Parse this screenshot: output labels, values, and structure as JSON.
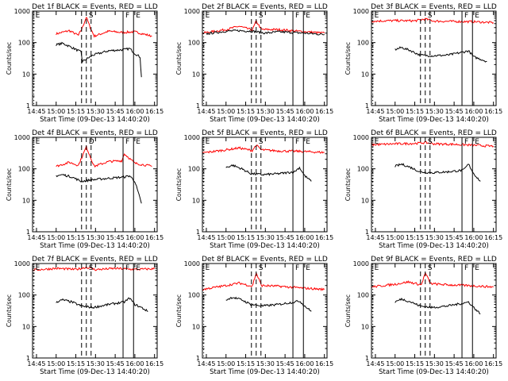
{
  "chart_data": [
    {
      "type": "line",
      "title": "Det 1f BLACK = Events, RED = LLD",
      "xlabel": "Start Time (09-Dec-13 14:40:20)",
      "ylabel": "Counts/sec",
      "yscale": "log",
      "ylim": [
        1,
        1000
      ],
      "xlim": [
        "14:42",
        "16:17"
      ],
      "xticks": [
        "14:45",
        "15:00",
        "15:15",
        "15:30",
        "15:45",
        "16:00",
        "16:15"
      ],
      "yticks": [
        "1",
        "10",
        "100",
        "1000"
      ],
      "markers": [
        {
          "label": "E",
          "time": "14:43"
        },
        {
          "label": "S",
          "time": "15:23"
        },
        {
          "label": "F",
          "time": "15:51"
        },
        {
          "label": "E",
          "time": "15:59"
        }
      ],
      "series": [
        {
          "color": "#ff0000",
          "x": [
            "15:00",
            "15:10",
            "15:17",
            "15:20",
            "15:23",
            "15:26",
            "15:29",
            "15:40",
            "15:50",
            "16:00",
            "16:13"
          ],
          "y": [
            190,
            240,
            170,
            300,
            650,
            300,
            160,
            230,
            210,
            220,
            160
          ]
        },
        {
          "color": "#000000",
          "x": [
            "15:00",
            "15:05",
            "15:12",
            "15:19",
            "15:20",
            "15:28",
            "15:40",
            "15:52",
            "15:56",
            "16:00",
            "16:04",
            "16:05"
          ],
          "y": [
            85,
            95,
            70,
            50,
            25,
            40,
            55,
            60,
            65,
            45,
            35,
            8
          ]
        }
      ]
    },
    {
      "type": "line",
      "title": "Det 2f BLACK = Events, RED = LLD",
      "xlabel": "Start Time (09-Dec-13 14:40:20)",
      "ylabel": "Counts/sec",
      "yscale": "log",
      "ylim": [
        1,
        1000
      ],
      "xlim": [
        "14:42",
        "16:17"
      ],
      "xticks": [
        "14:45",
        "15:00",
        "15:15",
        "15:30",
        "15:45",
        "16:00",
        "16:15"
      ],
      "yticks": [
        "1",
        "10",
        "100",
        "1000"
      ],
      "markers": [
        {
          "label": "E",
          "time": "14:43"
        },
        {
          "label": "S",
          "time": "15:23"
        },
        {
          "label": "F",
          "time": "15:51"
        },
        {
          "label": "E",
          "time": "15:59"
        }
      ],
      "series": [
        {
          "color": "#ff0000",
          "x": [
            "14:42",
            "15:00",
            "15:10",
            "15:20",
            "15:23",
            "15:27",
            "15:40",
            "15:55",
            "16:15"
          ],
          "y": [
            200,
            260,
            330,
            250,
            480,
            260,
            260,
            230,
            200
          ]
        },
        {
          "color": "#000000",
          "x": [
            "14:45",
            "15:00",
            "15:10",
            "15:20",
            "15:30",
            "15:40",
            "15:50",
            "16:00",
            "16:15"
          ],
          "y": [
            190,
            230,
            240,
            230,
            200,
            220,
            210,
            200,
            180
          ]
        }
      ]
    },
    {
      "type": "line",
      "title": "Det 3f BLACK = Events, RED = LLD",
      "xlabel": "Start Time (09-Dec-13 14:40:20)",
      "ylabel": "Counts/sec",
      "yscale": "log",
      "ylim": [
        1,
        1000
      ],
      "xlim": [
        "14:42",
        "16:17"
      ],
      "xticks": [
        "14:45",
        "15:00",
        "15:15",
        "15:30",
        "15:45",
        "16:00",
        "16:15"
      ],
      "yticks": [
        "1",
        "10",
        "100",
        "1000"
      ],
      "markers": [
        {
          "label": "E",
          "time": "14:43"
        },
        {
          "label": "S",
          "time": "15:23"
        },
        {
          "label": "F",
          "time": "15:51"
        },
        {
          "label": "E",
          "time": "15:59"
        }
      ],
      "series": [
        {
          "color": "#ff0000",
          "x": [
            "14:42",
            "15:00",
            "15:15",
            "15:23",
            "15:30",
            "15:45",
            "16:00",
            "16:15"
          ],
          "y": [
            480,
            500,
            490,
            560,
            480,
            470,
            460,
            430
          ]
        },
        {
          "color": "#000000",
          "x": [
            "15:00",
            "15:05",
            "15:12",
            "15:19",
            "15:28",
            "15:40",
            "15:52",
            "15:56",
            "16:00",
            "16:05",
            "16:10"
          ],
          "y": [
            60,
            70,
            55,
            40,
            38,
            40,
            50,
            55,
            35,
            30,
            25
          ]
        }
      ]
    },
    {
      "type": "line",
      "title": "Det 4f BLACK = Events, RED = LLD",
      "xlabel": "Start Time (09-Dec-13 14:40:20)",
      "ylabel": "Counts/sec",
      "yscale": "log",
      "ylim": [
        1,
        1000
      ],
      "xlim": [
        "14:42",
        "16:17"
      ],
      "xticks": [
        "14:45",
        "15:00",
        "15:15",
        "15:30",
        "15:45",
        "16:00",
        "16:15"
      ],
      "yticks": [
        "1",
        "10",
        "100",
        "1000"
      ],
      "markers": [
        {
          "label": "E",
          "time": "14:43"
        },
        {
          "label": "D",
          "time": "15:23"
        },
        {
          "label": "F",
          "time": "15:51"
        },
        {
          "label": "E",
          "time": "15:59"
        }
      ],
      "series": [
        {
          "color": "#ff0000",
          "x": [
            "15:00",
            "15:10",
            "15:17",
            "15:23",
            "15:29",
            "15:40",
            "15:50",
            "15:52",
            "16:00",
            "16:13"
          ],
          "y": [
            120,
            160,
            130,
            500,
            120,
            170,
            180,
            300,
            150,
            120
          ]
        },
        {
          "color": "#000000",
          "x": [
            "15:00",
            "15:05",
            "15:12",
            "15:19",
            "15:28",
            "15:40",
            "15:52",
            "15:56",
            "16:00",
            "16:05"
          ],
          "y": [
            60,
            65,
            55,
            40,
            45,
            50,
            55,
            60,
            40,
            8
          ]
        }
      ]
    },
    {
      "type": "line",
      "title": "Det 5f BLACK = Events, RED = LLD",
      "xlabel": "Start Time (09-Dec-13 14:40:20)",
      "ylabel": "Counts/sec",
      "yscale": "log",
      "ylim": [
        1,
        1000
      ],
      "xlim": [
        "14:42",
        "16:17"
      ],
      "xticks": [
        "14:45",
        "15:00",
        "15:15",
        "15:30",
        "15:45",
        "16:00",
        "16:15"
      ],
      "yticks": [
        "1",
        "10",
        "100",
        "1000"
      ],
      "markers": [
        {
          "label": "E",
          "time": "14:43"
        },
        {
          "label": "S",
          "time": "15:23"
        },
        {
          "label": "F",
          "time": "15:51"
        },
        {
          "label": "E",
          "time": "15:59"
        }
      ],
      "series": [
        {
          "color": "#ff0000",
          "x": [
            "14:42",
            "15:00",
            "15:10",
            "15:20",
            "15:23",
            "15:27",
            "15:40",
            "15:55",
            "16:15"
          ],
          "y": [
            320,
            400,
            460,
            380,
            560,
            400,
            370,
            360,
            330
          ]
        },
        {
          "color": "#000000",
          "x": [
            "15:00",
            "15:05",
            "15:12",
            "15:19",
            "15:28",
            "15:40",
            "15:52",
            "15:56",
            "16:00",
            "16:05"
          ],
          "y": [
            110,
            130,
            100,
            70,
            65,
            70,
            80,
            110,
            60,
            40
          ]
        }
      ]
    },
    {
      "type": "line",
      "title": "Det 6f BLACK = Events, RED = LLD",
      "xlabel": "Start Time (09-Dec-13 14:40:20)",
      "ylabel": "Counts/sec",
      "yscale": "log",
      "ylim": [
        1,
        1000
      ],
      "xlim": [
        "14:42",
        "16:17"
      ],
      "xticks": [
        "14:45",
        "15:00",
        "15:15",
        "15:30",
        "15:45",
        "16:00",
        "16:15"
      ],
      "yticks": [
        "1",
        "10",
        "100",
        "1000"
      ],
      "markers": [
        {
          "label": "E",
          "time": "14:43"
        },
        {
          "label": "S",
          "time": "15:23"
        },
        {
          "label": "F",
          "time": "15:51"
        },
        {
          "label": "E",
          "time": "15:59"
        }
      ],
      "series": [
        {
          "color": "#ff0000",
          "x": [
            "14:42",
            "15:00",
            "15:15",
            "15:23",
            "15:30",
            "15:45",
            "16:00",
            "16:15"
          ],
          "y": [
            580,
            620,
            640,
            680,
            620,
            600,
            560,
            520
          ]
        },
        {
          "color": "#000000",
          "x": [
            "15:00",
            "15:05",
            "15:12",
            "15:19",
            "15:28",
            "15:40",
            "15:52",
            "15:56",
            "16:00",
            "16:05"
          ],
          "y": [
            120,
            140,
            110,
            80,
            75,
            80,
            90,
            140,
            70,
            40
          ]
        }
      ]
    },
    {
      "type": "line",
      "title": "Det 7f BLACK = Events, RED = LLD",
      "xlabel": "Start Time (09-Dec-13 14:40:20)",
      "ylabel": "Counts/sec",
      "yscale": "log",
      "ylim": [
        1,
        1000
      ],
      "xlim": [
        "14:42",
        "16:17"
      ],
      "xticks": [
        "14:45",
        "15:00",
        "15:15",
        "15:30",
        "15:45",
        "16:00",
        "16:15"
      ],
      "yticks": [
        "1",
        "10",
        "100",
        "1000"
      ],
      "markers": [
        {
          "label": "E",
          "time": "14:43"
        },
        {
          "label": "S",
          "time": "15:23"
        },
        {
          "label": "F",
          "time": "15:51"
        },
        {
          "label": "E",
          "time": "15:59"
        }
      ],
      "series": [
        {
          "color": "#ff0000",
          "x": [
            "14:42",
            "15:00",
            "15:15",
            "15:23",
            "15:30",
            "15:45",
            "16:00",
            "16:15"
          ],
          "y": [
            620,
            700,
            650,
            760,
            640,
            700,
            650,
            680
          ]
        },
        {
          "color": "#000000",
          "x": [
            "15:00",
            "15:05",
            "15:12",
            "15:19",
            "15:28",
            "15:40",
            "15:52",
            "15:56",
            "16:00",
            "16:05",
            "16:10"
          ],
          "y": [
            60,
            70,
            60,
            45,
            40,
            50,
            60,
            80,
            50,
            40,
            30
          ]
        }
      ]
    },
    {
      "type": "line",
      "title": "Det 8f BLACK = Events, RED = LLD",
      "xlabel": "Start Time (09-Dec-13 14:40:20)",
      "ylabel": "Counts/sec",
      "yscale": "log",
      "ylim": [
        1,
        1000
      ],
      "xlim": [
        "14:42",
        "16:17"
      ],
      "xticks": [
        "14:45",
        "15:00",
        "15:15",
        "15:30",
        "15:45",
        "16:00",
        "16:15"
      ],
      "yticks": [
        "1",
        "10",
        "100",
        "1000"
      ],
      "markers": [
        {
          "label": "E",
          "time": "14:43"
        },
        {
          "label": "S",
          "time": "15:23"
        },
        {
          "label": "F",
          "time": "15:51"
        },
        {
          "label": "E",
          "time": "15:59"
        }
      ],
      "series": [
        {
          "color": "#ff0000",
          "x": [
            "14:42",
            "15:00",
            "15:10",
            "15:20",
            "15:23",
            "15:27",
            "15:40",
            "15:55",
            "16:15"
          ],
          "y": [
            150,
            200,
            240,
            190,
            500,
            200,
            190,
            170,
            150
          ]
        },
        {
          "color": "#000000",
          "x": [
            "15:00",
            "15:05",
            "15:12",
            "15:19",
            "15:28",
            "15:40",
            "15:52",
            "15:56",
            "16:00",
            "16:05"
          ],
          "y": [
            70,
            85,
            70,
            50,
            45,
            50,
            60,
            65,
            45,
            30
          ]
        }
      ]
    },
    {
      "type": "line",
      "title": "Det 9f BLACK = Events, RED = LLD",
      "xlabel": "Start Time (09-Dec-13 14:40:20)",
      "ylabel": "Counts/sec",
      "yscale": "log",
      "ylim": [
        1,
        1000
      ],
      "xlim": [
        "14:42",
        "16:17"
      ],
      "xticks": [
        "14:45",
        "15:00",
        "15:15",
        "15:30",
        "15:45",
        "16:00",
        "16:15"
      ],
      "yticks": [
        "1",
        "10",
        "100",
        "1000"
      ],
      "markers": [
        {
          "label": "E",
          "time": "14:43"
        },
        {
          "label": "S",
          "time": "15:23"
        },
        {
          "label": "F",
          "time": "15:51"
        },
        {
          "label": "E",
          "time": "15:59"
        }
      ],
      "series": [
        {
          "color": "#ff0000",
          "x": [
            "14:42",
            "15:00",
            "15:10",
            "15:20",
            "15:23",
            "15:27",
            "15:40",
            "15:55",
            "16:15"
          ],
          "y": [
            180,
            220,
            260,
            210,
            500,
            230,
            210,
            200,
            180
          ]
        },
        {
          "color": "#000000",
          "x": [
            "15:00",
            "15:05",
            "15:12",
            "15:19",
            "15:28",
            "15:40",
            "15:52",
            "15:56",
            "16:00",
            "16:05"
          ],
          "y": [
            60,
            75,
            60,
            45,
            40,
            45,
            55,
            60,
            40,
            25
          ]
        }
      ]
    }
  ]
}
